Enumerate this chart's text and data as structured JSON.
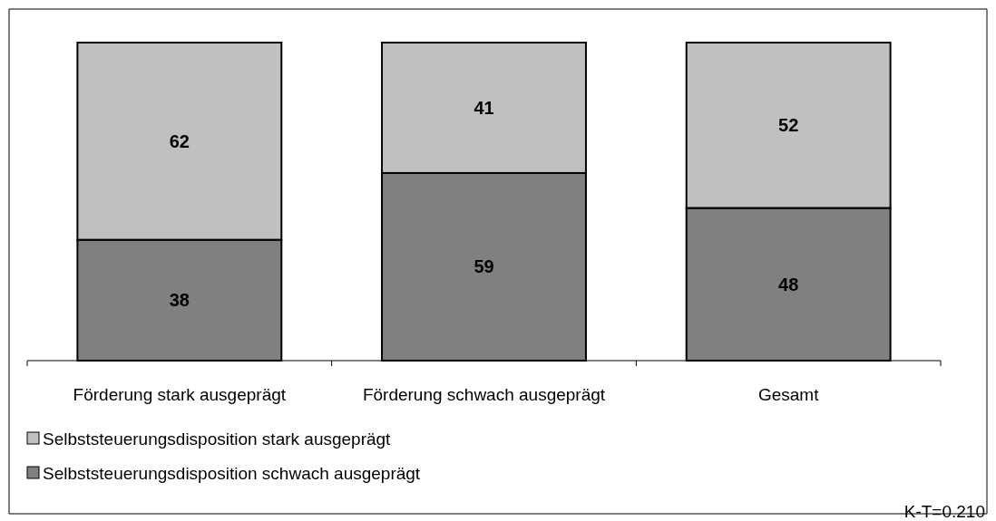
{
  "chart_data": {
    "type": "bar",
    "stacked": true,
    "categories": [
      "Förderung stark ausgeprägt",
      "Förderung schwach ausgeprägt",
      "Gesamt"
    ],
    "series": [
      {
        "name": "Selbststeuerungsdisposition schwach ausgeprägt",
        "color": "#808080",
        "values": [
          38,
          59,
          48
        ]
      },
      {
        "name": "Selbststeuerungsdisposition stark ausgeprägt",
        "color": "#c0c0c0",
        "values": [
          62,
          41,
          52
        ]
      }
    ],
    "ylim": [
      0,
      100
    ],
    "data_labels": true,
    "tick_labels": "x",
    "grid": false,
    "legend": "bottom left",
    "annotations": [
      "K-T=0.210"
    ]
  }
}
